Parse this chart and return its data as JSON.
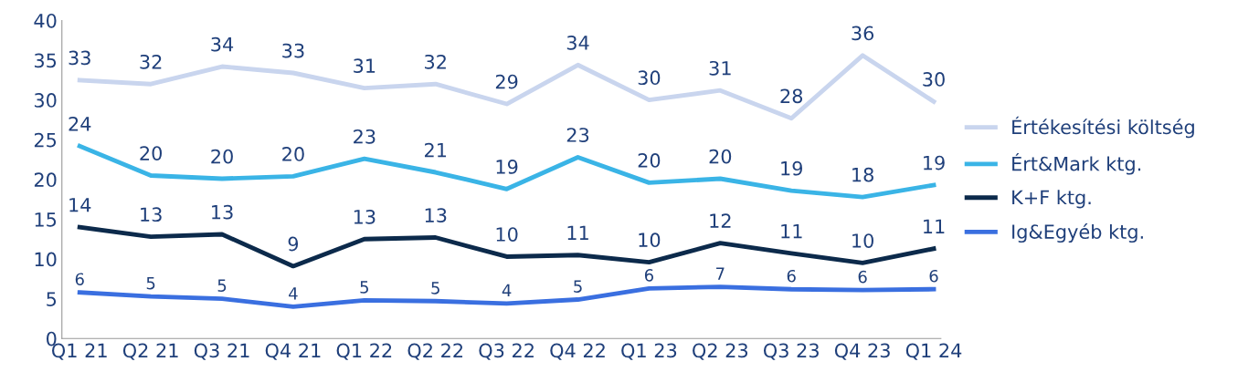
{
  "chart_data": {
    "type": "line",
    "categories": [
      "Q1 21",
      "Q2 21",
      "Q3 21",
      "Q4 21",
      "Q1 22",
      "Q2 22",
      "Q3 22",
      "Q4 22",
      "Q1 23",
      "Q2 23",
      "Q3 23",
      "Q4 23",
      "Q1 24"
    ],
    "series": [
      {
        "name": "Értékesítési költség",
        "color": "#c9d5ee",
        "values": [
          32.5,
          32.0,
          34.2,
          33.4,
          31.5,
          32.0,
          29.5,
          34.4,
          30.0,
          31.2,
          27.7,
          35.6,
          29.8
        ],
        "value_labels": [
          "33",
          "32",
          "34",
          "33",
          "31",
          "32",
          "29",
          "34",
          "30",
          "31",
          "28",
          "36",
          "30"
        ]
      },
      {
        "name": "Ért&Mark ktg.",
        "color": "#3ab4e6",
        "values": [
          24.2,
          20.5,
          20.1,
          20.4,
          22.6,
          20.9,
          18.8,
          22.8,
          19.6,
          20.1,
          18.6,
          17.8,
          19.3
        ],
        "value_labels": [
          "24",
          "20",
          "20",
          "20",
          "23",
          "21",
          "19",
          "23",
          "20",
          "20",
          "19",
          "18",
          "19"
        ]
      },
      {
        "name": "K+F ktg.",
        "color": "#0c2a4b",
        "values": [
          14.0,
          12.8,
          13.1,
          9.1,
          12.5,
          12.7,
          10.3,
          10.5,
          9.6,
          12.0,
          10.7,
          9.5,
          11.3
        ],
        "value_labels": [
          "14",
          "13",
          "13",
          "9",
          "13",
          "13",
          "10",
          "11",
          "10",
          "12",
          "11",
          "10",
          "11"
        ]
      },
      {
        "name": "Ig&Egyéb ktg.",
        "color": "#3a6fe0",
        "values": [
          5.8,
          5.3,
          5.0,
          4.0,
          4.8,
          4.7,
          4.4,
          4.9,
          6.3,
          6.5,
          6.2,
          6.1,
          6.2
        ],
        "value_labels": [
          "6",
          "5",
          "5",
          "4",
          "5",
          "5",
          "4",
          "5",
          "6",
          "7",
          "6",
          "6",
          "6"
        ]
      }
    ],
    "ylim": [
      0,
      40
    ],
    "yticks": [
      0,
      5,
      10,
      15,
      20,
      25,
      30,
      35,
      40
    ],
    "grid": false,
    "legend": "right",
    "marker": "none",
    "line_style": "solid"
  }
}
